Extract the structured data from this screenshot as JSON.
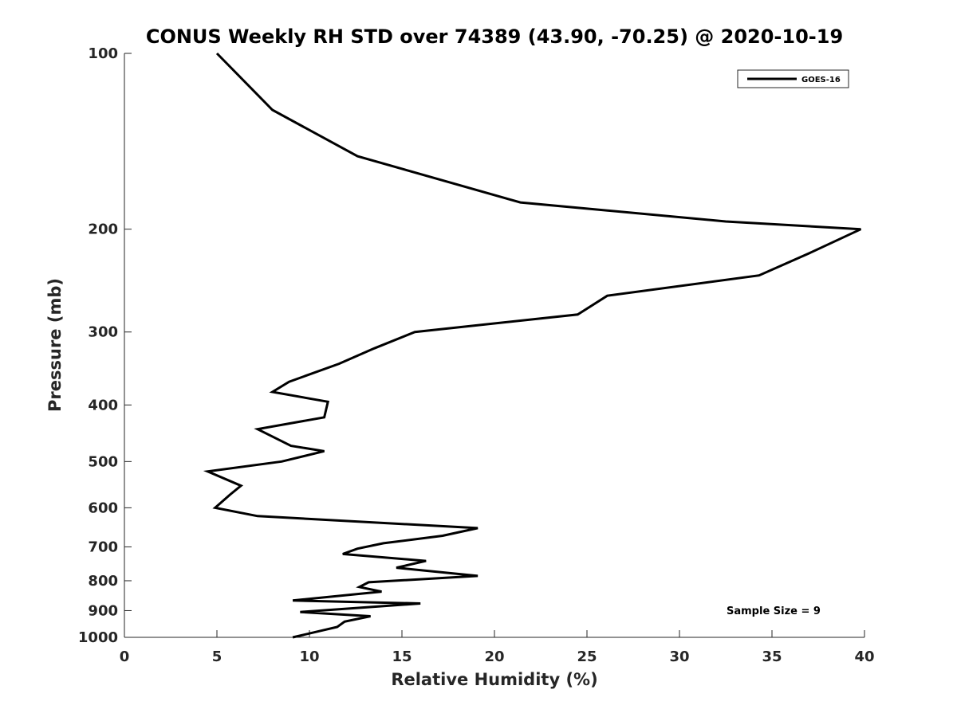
{
  "chart_data": {
    "type": "line",
    "title": "CONUS Weekly RH STD over 74389 (43.90, -70.25) @ 2020-10-19",
    "xlabel": "Relative Humidity (%)",
    "ylabel": "Pressure (mb)",
    "xlim": [
      0,
      40
    ],
    "ylim": [
      100,
      1000
    ],
    "y_scale": "log",
    "y_reversed": true,
    "x_ticks": [
      0,
      5,
      10,
      15,
      20,
      25,
      30,
      35,
      40
    ],
    "y_ticks": [
      100,
      200,
      300,
      400,
      500,
      600,
      700,
      800,
      900,
      1000
    ],
    "grid": false,
    "legend_position": "top-right",
    "annotation": "Sample Size = 9",
    "series": [
      {
        "name": "GOES-16",
        "color": "#000000",
        "points": [
          [
            5.0,
            100
          ],
          [
            8.0,
            125
          ],
          [
            12.6,
            150
          ],
          [
            21.4,
            180
          ],
          [
            32.5,
            194
          ],
          [
            39.8,
            200
          ],
          [
            37.0,
            220
          ],
          [
            34.3,
            240
          ],
          [
            26.1,
            260
          ],
          [
            24.5,
            280
          ],
          [
            15.7,
            300
          ],
          [
            13.5,
            320
          ],
          [
            11.6,
            340
          ],
          [
            8.9,
            365
          ],
          [
            8.0,
            380
          ],
          [
            11.0,
            395
          ],
          [
            10.8,
            420
          ],
          [
            7.2,
            440
          ],
          [
            9.0,
            470
          ],
          [
            10.8,
            480
          ],
          [
            8.5,
            500
          ],
          [
            4.5,
            520
          ],
          [
            6.3,
            550
          ],
          [
            5.7,
            570
          ],
          [
            4.9,
            600
          ],
          [
            7.2,
            620
          ],
          [
            19.1,
            650
          ],
          [
            17.2,
            670
          ],
          [
            14.0,
            690
          ],
          [
            12.6,
            705
          ],
          [
            11.8,
            720
          ],
          [
            16.3,
            740
          ],
          [
            14.7,
            760
          ],
          [
            19.1,
            785
          ],
          [
            13.2,
            805
          ],
          [
            12.7,
            820
          ],
          [
            13.9,
            835
          ],
          [
            9.1,
            865
          ],
          [
            16.0,
            875
          ],
          [
            9.5,
            905
          ],
          [
            13.3,
            920
          ],
          [
            11.9,
            940
          ],
          [
            11.5,
            960
          ],
          [
            9.1,
            1000
          ]
        ]
      }
    ]
  }
}
